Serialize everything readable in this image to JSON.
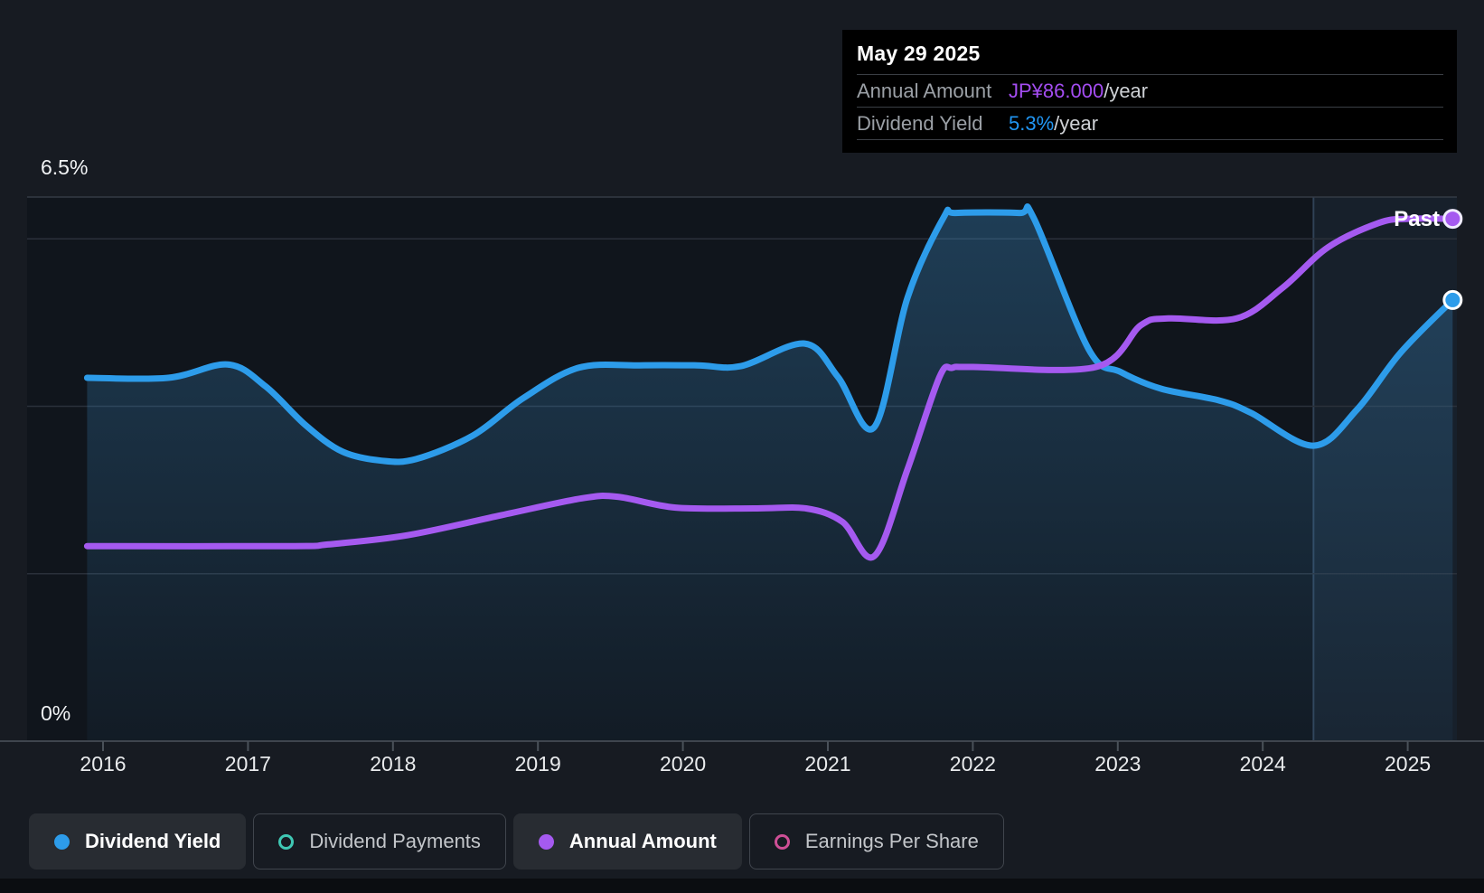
{
  "tooltip": {
    "date": "May 29 2025",
    "rows": [
      {
        "label": "Annual Amount",
        "value": "JP¥86.000",
        "suffix": "/year",
        "value_color": "#a44df2"
      },
      {
        "label": "Dividend Yield",
        "value": "5.3%",
        "suffix": "/year",
        "value_color": "#2196f3"
      }
    ]
  },
  "y_axis": {
    "top_label": "6.5%",
    "bottom_label": "0%"
  },
  "past_label": "Past",
  "legend": [
    {
      "label": "Dividend Yield",
      "marker": "dot",
      "color": "#2d9cea",
      "active": true
    },
    {
      "label": "Dividend Payments",
      "marker": "ring",
      "color": "#3fc8b4",
      "active": false
    },
    {
      "label": "Annual Amount",
      "marker": "dot",
      "color": "#a55af0",
      "active": true
    },
    {
      "label": "Earnings Per Share",
      "marker": "ring",
      "color": "#ce4f96",
      "active": false
    }
  ],
  "chart_data": {
    "type": "area",
    "x_ticks": [
      2016,
      2017,
      2018,
      2019,
      2020,
      2021,
      2022,
      2023,
      2024,
      2025
    ],
    "x_range": [
      2015.89,
      2025.56
    ],
    "ylim": [
      0,
      6.5
    ],
    "y_axis_unit": "%",
    "y_gridlines_pct": [
      2,
      4,
      6,
      6.5
    ],
    "grid": true,
    "legend_position": "bottom",
    "highlight_band_years": [
      2024.35,
      2025.56
    ],
    "end_marker_labels": [
      "Past"
    ],
    "series": [
      {
        "name": "Dividend Yield",
        "color": "#2d9cea",
        "unit": "%",
        "area_fill": true,
        "latest_value_label": "5.3%/year",
        "points": [
          [
            2015.89,
            4.34
          ],
          [
            2016.45,
            4.34
          ],
          [
            2016.86,
            4.5
          ],
          [
            2017.12,
            4.24
          ],
          [
            2017.4,
            3.77
          ],
          [
            2017.65,
            3.46
          ],
          [
            2017.92,
            3.35
          ],
          [
            2018.16,
            3.37
          ],
          [
            2018.55,
            3.65
          ],
          [
            2018.9,
            4.1
          ],
          [
            2019.28,
            4.46
          ],
          [
            2019.7,
            4.49
          ],
          [
            2020.1,
            4.49
          ],
          [
            2020.4,
            4.48
          ],
          [
            2020.84,
            4.75
          ],
          [
            2021.07,
            4.35
          ],
          [
            2021.32,
            3.75
          ],
          [
            2021.55,
            5.3
          ],
          [
            2021.8,
            6.26
          ],
          [
            2021.88,
            6.31
          ],
          [
            2022.32,
            6.31
          ],
          [
            2022.42,
            6.25
          ],
          [
            2022.8,
            4.68
          ],
          [
            2023.02,
            4.41
          ],
          [
            2023.3,
            4.21
          ],
          [
            2023.7,
            4.07
          ],
          [
            2023.92,
            3.92
          ],
          [
            2024.35,
            3.53
          ],
          [
            2024.65,
            3.96
          ],
          [
            2024.95,
            4.64
          ],
          [
            2025.31,
            5.27
          ]
        ]
      },
      {
        "name": "Annual Amount",
        "color": "#a55af0",
        "unit": "JP¥/year (plotted on % axis)",
        "area_fill": false,
        "latest_value_label": "JP¥86.000/year",
        "points": [
          [
            2015.89,
            2.33
          ],
          [
            2017.3,
            2.33
          ],
          [
            2017.55,
            2.35
          ],
          [
            2018.1,
            2.46
          ],
          [
            2018.75,
            2.7
          ],
          [
            2019.3,
            2.9
          ],
          [
            2019.55,
            2.92
          ],
          [
            2019.95,
            2.79
          ],
          [
            2020.5,
            2.78
          ],
          [
            2020.85,
            2.78
          ],
          [
            2021.1,
            2.62
          ],
          [
            2021.32,
            2.21
          ],
          [
            2021.55,
            3.25
          ],
          [
            2021.77,
            4.35
          ],
          [
            2021.86,
            4.46
          ],
          [
            2022.0,
            4.47
          ],
          [
            2022.85,
            4.47
          ],
          [
            2023.16,
            4.97
          ],
          [
            2023.35,
            5.05
          ],
          [
            2023.82,
            5.05
          ],
          [
            2024.14,
            5.42
          ],
          [
            2024.45,
            5.9
          ],
          [
            2024.8,
            6.19
          ],
          [
            2025.0,
            6.24
          ],
          [
            2025.31,
            6.24
          ]
        ]
      }
    ]
  }
}
